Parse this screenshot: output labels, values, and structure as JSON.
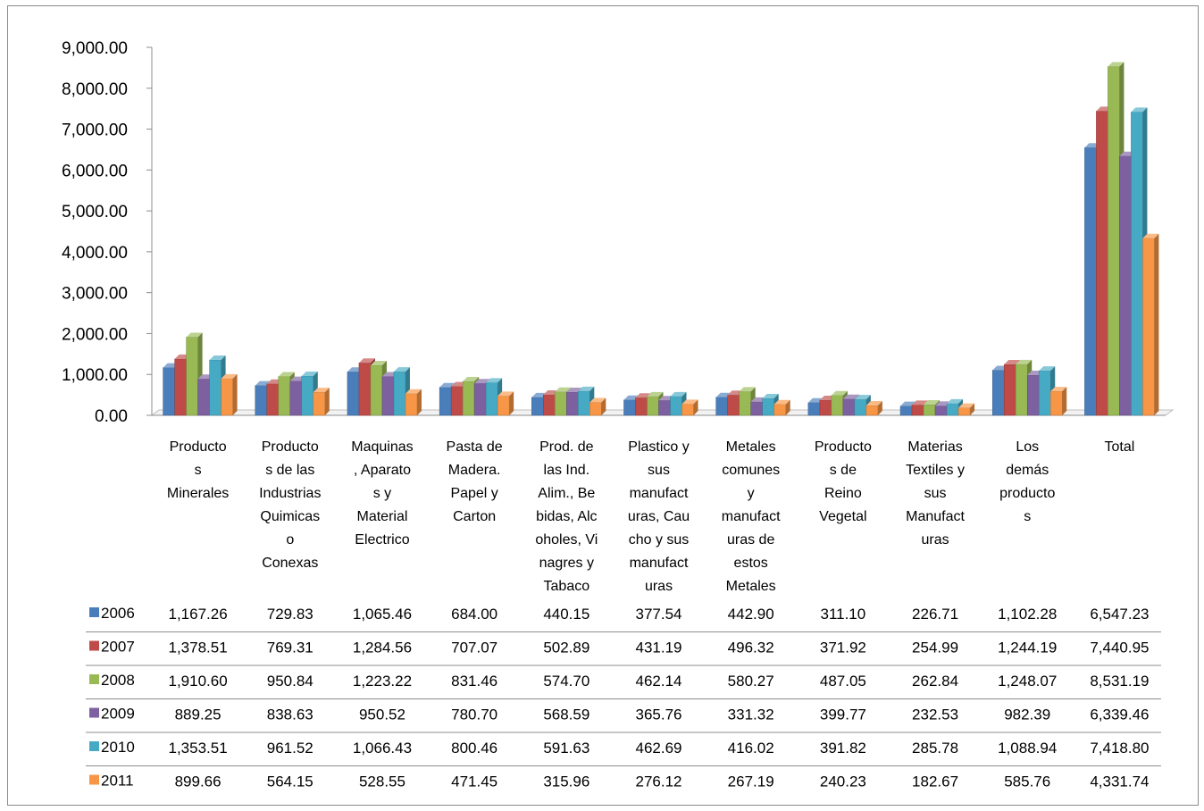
{
  "chart_data": {
    "type": "bar",
    "title": "",
    "xlabel": "",
    "ylabel": "",
    "ylim": [
      0,
      9000
    ],
    "y_ticks": [
      "0.00",
      "1,000.00",
      "2,000.00",
      "3,000.00",
      "4,000.00",
      "5,000.00",
      "6,000.00",
      "7,000.00",
      "8,000.00",
      "9,000.00"
    ],
    "grid": false,
    "style": "3d-clustered",
    "legend": "data-table",
    "categories": [
      {
        "lines": [
          "Producto",
          "s",
          "Minerales"
        ]
      },
      {
        "lines": [
          "Producto",
          "s de las",
          "Industrias",
          "Quimicas",
          "o",
          "Conexas"
        ]
      },
      {
        "lines": [
          "Maquinas",
          ", Aparato",
          "s y",
          "Material",
          "Electrico"
        ]
      },
      {
        "lines": [
          "Pasta de",
          "Madera.",
          "Papel y",
          "Carton"
        ]
      },
      {
        "lines": [
          "Prod. de",
          "las Ind.",
          "Alim., Be",
          "bidas, Alc",
          "oholes, Vi",
          "nagres y",
          "Tabaco"
        ]
      },
      {
        "lines": [
          "Plastico y",
          "sus",
          "manufact",
          "uras, Cau",
          "cho y sus",
          "manufact",
          "uras"
        ]
      },
      {
        "lines": [
          "Metales",
          "comunes",
          "y",
          "manufact",
          "uras de",
          "estos",
          "Metales"
        ]
      },
      {
        "lines": [
          "Producto",
          "s de",
          "Reino",
          "Vegetal"
        ]
      },
      {
        "lines": [
          "Materias",
          "Textiles y",
          "sus",
          "Manufact",
          "uras"
        ]
      },
      {
        "lines": [
          "Los",
          "demás",
          "producto",
          "s"
        ]
      },
      {
        "lines": [
          "Total"
        ]
      }
    ],
    "series": [
      {
        "name": "2006",
        "color": "#4a7ebb",
        "values": [
          1167.26,
          729.83,
          1065.46,
          684.0,
          440.15,
          377.54,
          442.9,
          311.1,
          226.71,
          1102.28,
          6547.23
        ],
        "labels": [
          "1,167.26",
          "729.83",
          "1,065.46",
          "684.00",
          "440.15",
          "377.54",
          "442.90",
          "311.10",
          "226.71",
          "1,102.28",
          "6,547.23"
        ]
      },
      {
        "name": "2007",
        "color": "#be4b48",
        "values": [
          1378.51,
          769.31,
          1284.56,
          707.07,
          502.89,
          431.19,
          496.32,
          371.92,
          254.99,
          1244.19,
          7440.95
        ],
        "labels": [
          "1,378.51",
          "769.31",
          "1,284.56",
          "707.07",
          "502.89",
          "431.19",
          "496.32",
          "371.92",
          "254.99",
          "1,244.19",
          "7,440.95"
        ]
      },
      {
        "name": "2008",
        "color": "#98b954",
        "values": [
          1910.6,
          950.84,
          1223.22,
          831.46,
          574.7,
          462.14,
          580.27,
          487.05,
          262.84,
          1248.07,
          8531.19
        ],
        "labels": [
          "1,910.60",
          "950.84",
          "1,223.22",
          "831.46",
          "574.70",
          "462.14",
          "580.27",
          "487.05",
          "262.84",
          "1,248.07",
          "8,531.19"
        ]
      },
      {
        "name": "2009",
        "color": "#7d60a0",
        "values": [
          889.25,
          838.63,
          950.52,
          780.7,
          568.59,
          365.76,
          331.32,
          399.77,
          232.53,
          982.39,
          6339.46
        ],
        "labels": [
          "889.25",
          "838.63",
          "950.52",
          "780.70",
          "568.59",
          "365.76",
          "331.32",
          "399.77",
          "232.53",
          "982.39",
          "6,339.46"
        ]
      },
      {
        "name": "2010",
        "color": "#46aac5",
        "values": [
          1353.51,
          961.52,
          1066.43,
          800.46,
          591.63,
          462.69,
          416.02,
          391.82,
          285.78,
          1088.94,
          7418.8
        ],
        "labels": [
          "1,353.51",
          "961.52",
          "1,066.43",
          "800.46",
          "591.63",
          "462.69",
          "416.02",
          "391.82",
          "285.78",
          "1,088.94",
          "7,418.80"
        ]
      },
      {
        "name": "2011",
        "color": "#f79646",
        "values": [
          899.66,
          564.15,
          528.55,
          471.45,
          315.96,
          276.12,
          267.19,
          240.23,
          182.67,
          585.76,
          4331.74
        ],
        "labels": [
          "899.66",
          "564.15",
          "528.55",
          "471.45",
          "315.96",
          "276.12",
          "267.19",
          "240.23",
          "182.67",
          "585.76",
          "4,331.74"
        ]
      }
    ]
  }
}
